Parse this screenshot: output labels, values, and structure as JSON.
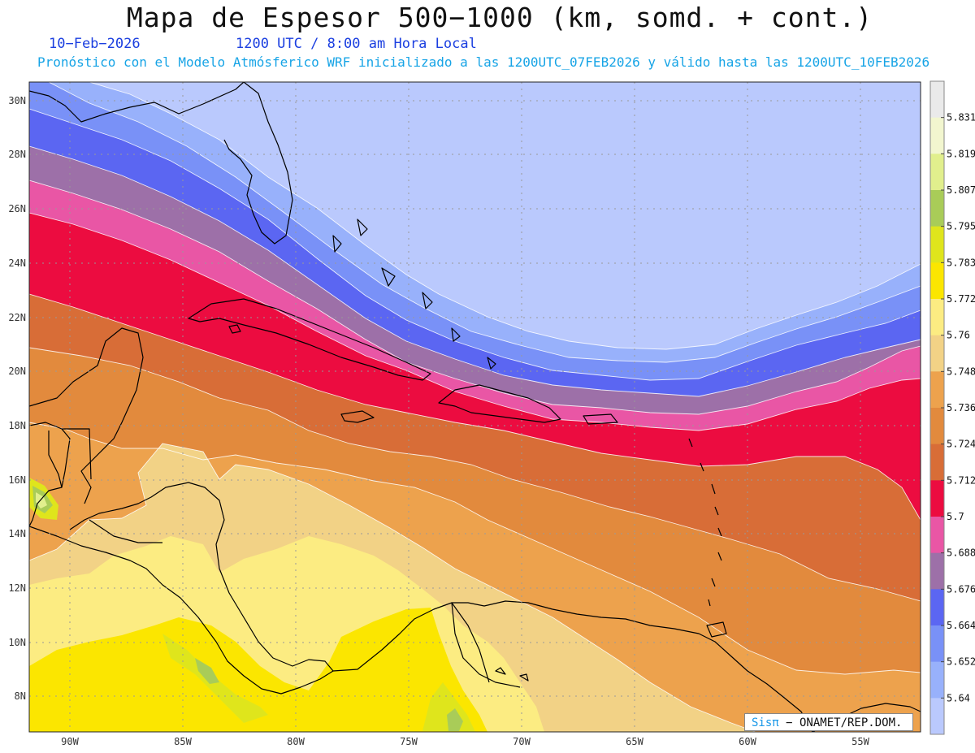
{
  "header": {
    "title": "Mapa de Espesor 500−1000 (km, somd. + cont.)",
    "date": "10−Feb−2026",
    "valid_time": "1200 UTC / 8:00 am Hora Local",
    "subtitle": "Pronóstico con el Modelo Atmósferico WRF inicializado a las 1200UTC_07FEB2026 y válido hasta las  1200UTC_10FEB2026"
  },
  "axes": {
    "lat_ticks": [
      "30N",
      "28N",
      "26N",
      "24N",
      "22N",
      "20N",
      "18N",
      "16N",
      "14N",
      "12N",
      "10N",
      "8N"
    ],
    "lon_ticks": [
      "90W",
      "85W",
      "80W",
      "75W",
      "70W",
      "65W",
      "60W",
      "55W"
    ]
  },
  "colorbar": {
    "labels": [
      "5.831",
      "5.819",
      "5.807",
      "5.795",
      "5.783",
      "5.772",
      "5.76",
      "5.748",
      "5.736",
      "5.724",
      "5.712",
      "5.7",
      "5.688",
      "5.676",
      "5.664",
      "5.652",
      "5.64"
    ],
    "colors": [
      "#eaeaea",
      "#f2f6cf",
      "#e1ef8d",
      "#a9cc58",
      "#dfe51c",
      "#fbe600",
      "#fcec82",
      "#f2d286",
      "#eda24d",
      "#e28a3d",
      "#d86d37",
      "#ec0c40",
      "#e956a5",
      "#9d70a8",
      "#5b66f2",
      "#7991f7",
      "#98b1fb",
      "#bac9fd"
    ]
  },
  "credit": {
    "brand": "Sisπ",
    "text": " − ONAMET/REP.DOM."
  }
}
